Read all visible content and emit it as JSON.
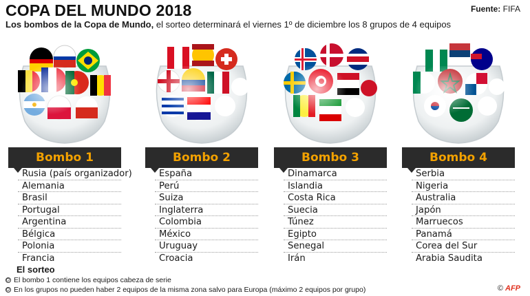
{
  "title": "COPA DEL MUNDO 2018",
  "source": {
    "label": "Fuente:",
    "value": "FIFA"
  },
  "subtitle": {
    "bold": "Los bombos de la Copa de Mundo,",
    "rest": " el sorteo determinará el viernes 1º de diciembre los 8 grupos de 4 equipos"
  },
  "pots": [
    {
      "name": "Bombo 1",
      "teams": [
        "Rusia (país organizador)",
        "Alemania",
        "Brasil",
        "Portugal",
        "Argentina",
        "Bélgica",
        "Polonia",
        "Francia"
      ]
    },
    {
      "name": "Bombo 2",
      "teams": [
        "España",
        "Perú",
        "Suiza",
        "Inglaterra",
        "Colombia",
        "México",
        "Uruguay",
        "Croacia"
      ]
    },
    {
      "name": "Bombo 3",
      "teams": [
        "Dinamarca",
        "Islandia",
        "Costa Rica",
        "Suecia",
        "Túnez",
        "Egipto",
        "Senegal",
        "Irán"
      ]
    },
    {
      "name": "Bombo 4",
      "teams": [
        "Serbia",
        "Nigeria",
        "Australia",
        "Japón",
        "Marruecos",
        "Panamá",
        "Corea del Sur",
        "Arabia Saudita"
      ]
    }
  ],
  "sorteo": {
    "title": "El sorteo",
    "notes": [
      "El bombo 1 contiene los equipos cabeza de serie",
      "En los grupos no pueden haber 2 equipos de la misma zona salvo para Europa (máximo 2 equipos por grupo)"
    ]
  },
  "credit": {
    "symbol": "©",
    "brand": "AFP"
  },
  "colors": {
    "header_bg": "#2b2b2b",
    "header_text": "#f2a100",
    "credit": "#e0301e"
  },
  "icons": [
    "soccer-ball-icon",
    "flag-ball-icon",
    "glass-bowl-icon"
  ]
}
